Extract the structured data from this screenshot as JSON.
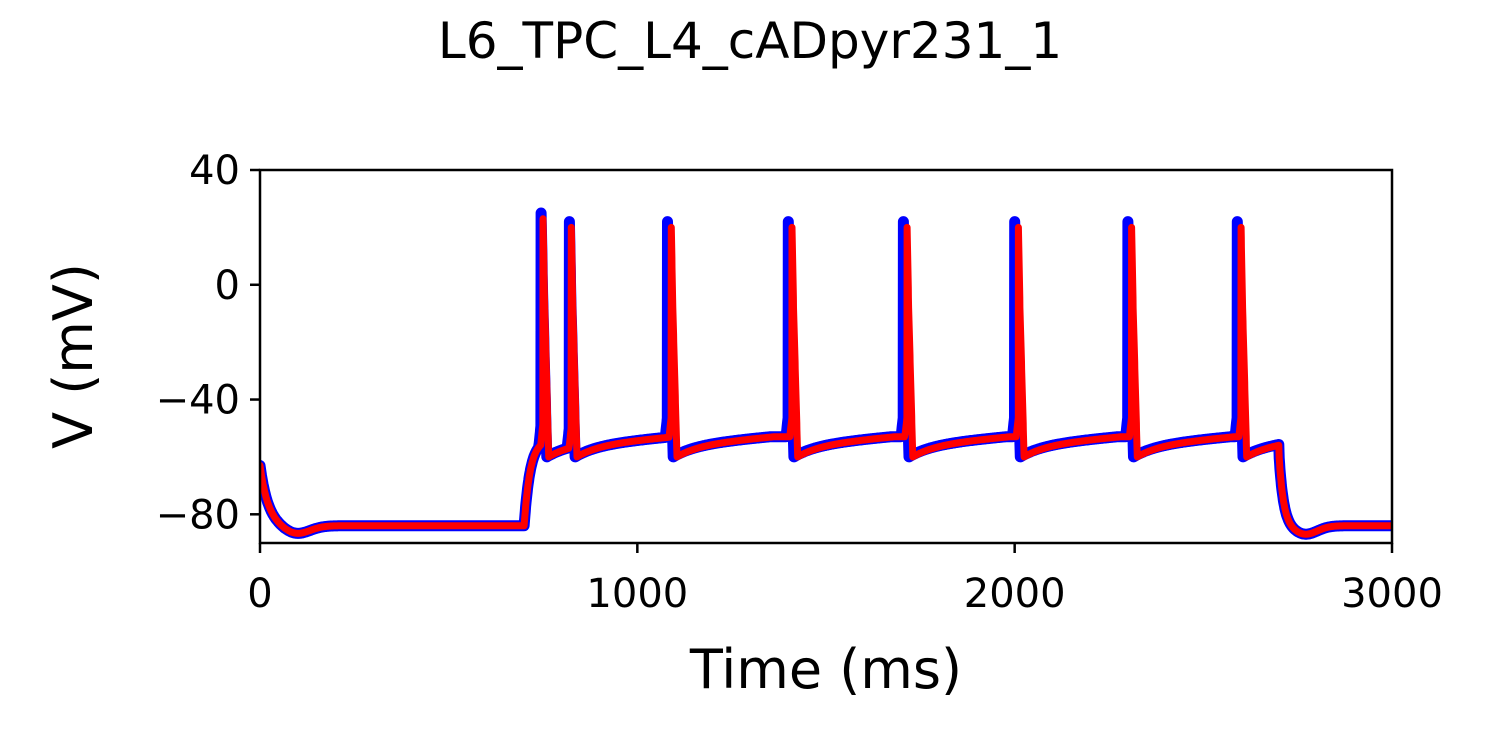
{
  "chart_data": {
    "type": "line",
    "title": "L6_TPC_L4_cADpyr231_1",
    "xlabel": "Time (ms)",
    "ylabel": "V (mV)",
    "xlim": [
      0,
      3000
    ],
    "ylim": [
      -90,
      40
    ],
    "xticks": [
      0,
      1000,
      2000,
      3000
    ],
    "xtick_labels": [
      "0",
      "1000",
      "2000",
      "3000"
    ],
    "yticks": [
      -80,
      -40,
      0,
      40
    ],
    "ytick_labels": [
      "−80",
      "−40",
      "0",
      "40"
    ],
    "grid": false,
    "legend": "none",
    "stimulus": {
      "start": 700,
      "end": 2700
    },
    "resting_potential": -84,
    "series": [
      {
        "color": "#0000ff",
        "line_width": "thick",
        "spike_times": [
          745,
          820,
          1080,
          1400,
          1705,
          2000,
          2300,
          2590
        ],
        "spike_peaks": [
          25,
          22,
          22,
          22,
          22,
          22,
          22,
          22
        ]
      },
      {
        "color": "#ff0000",
        "line_width": "medium",
        "spike_times": [
          750,
          825,
          1090,
          1410,
          1715,
          2010,
          2310,
          2600
        ],
        "spike_peaks": [
          23,
          20,
          20,
          20,
          20,
          20,
          20,
          20
        ]
      }
    ]
  }
}
